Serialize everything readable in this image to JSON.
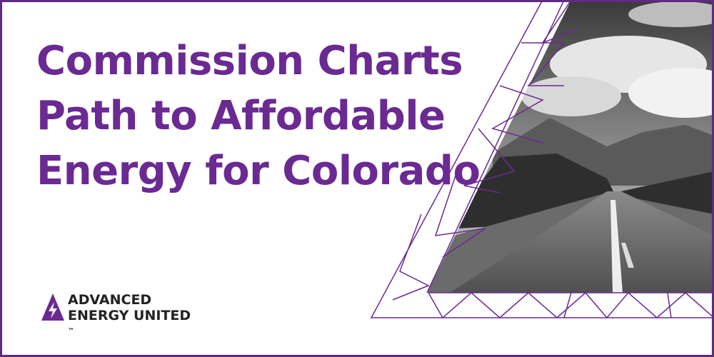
{
  "header": {
    "title_lines": [
      "Commission Charts",
      "Path to Affordable",
      "Energy for Colorado"
    ]
  },
  "logo": {
    "line1": "ADVANCED",
    "line2": "ENERGY UNITED",
    "trademark": "™"
  }
}
